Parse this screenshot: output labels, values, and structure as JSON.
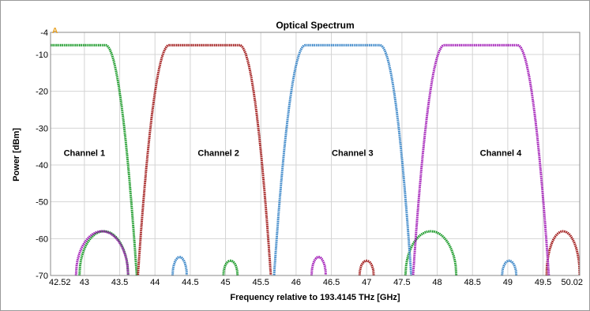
{
  "chart_data": {
    "type": "line",
    "title": "Optical Spectrum",
    "xlabel": "Frequency relative to 193.4145 THz [GHz]",
    "ylabel": "Power [dBm]",
    "xlim": [
      42.52,
      50.02
    ],
    "ylim": [
      -70,
      -4
    ],
    "x_ticks": [
      42.52,
      43,
      43.5,
      44,
      44.5,
      45,
      45.5,
      46,
      46.5,
      47,
      47.5,
      48,
      48.5,
      49,
      49.5,
      50.02
    ],
    "x_tick_labels": [
      "42.52",
      "43",
      "43.5",
      "44",
      "44.5",
      "45",
      "45.5",
      "46",
      "46.5",
      "47",
      "47.5",
      "48",
      "48.5",
      "49",
      "49.5",
      "50.02"
    ],
    "y_ticks": [
      -70,
      -60,
      -50,
      -40,
      -30,
      -20,
      -10,
      -4
    ],
    "y_tick_labels": [
      "-70",
      "-60",
      "-50",
      "-40",
      "-30",
      "-20",
      "-10",
      "-4"
    ],
    "grid": true,
    "marker_label": "A",
    "annotations": [
      {
        "text": "Channel 1",
        "x": 43.0,
        "y": -37.5
      },
      {
        "text": "Channel 2",
        "x": 44.9,
        "y": -37.5
      },
      {
        "text": "Channel 3",
        "x": 46.8,
        "y": -37.5
      },
      {
        "text": "Channel 4",
        "x": 48.9,
        "y": -37.5
      }
    ],
    "series": [
      {
        "color": "#1a9a28",
        "main": {
          "center": 42.55,
          "flat_half_width": 0.75,
          "peak": -7.5,
          "edge_width": 0.25
        },
        "side_lobes": [
          {
            "from": 42.93,
            "to": 43.62,
            "peak": -58
          },
          {
            "from": 44.97,
            "to": 45.17,
            "peak": -66
          },
          {
            "from": 47.55,
            "to": 48.27,
            "peak": -58
          }
        ]
      },
      {
        "color": "#a11a1a",
        "main": {
          "center": 44.7,
          "flat_half_width": 0.5,
          "peak": -7.5,
          "edge_width": 0.25
        },
        "side_lobes": [
          {
            "from": 46.9,
            "to": 47.1,
            "peak": -66
          },
          {
            "from": 49.55,
            "to": 50.02,
            "peak": -58
          }
        ]
      },
      {
        "color": "#3a86c8",
        "main": {
          "center": 46.66,
          "flat_half_width": 0.53,
          "peak": -7.5,
          "edge_width": 0.25
        },
        "side_lobes": [
          {
            "from": 44.25,
            "to": 44.45,
            "peak": -65
          },
          {
            "from": 48.92,
            "to": 49.12,
            "peak": -66
          }
        ]
      },
      {
        "color": "#a31fb8",
        "main": {
          "center": 48.62,
          "flat_half_width": 0.52,
          "peak": -7.5,
          "edge_width": 0.25
        },
        "side_lobes": [
          {
            "from": 42.88,
            "to": 43.62,
            "peak": -58
          },
          {
            "from": 46.22,
            "to": 46.42,
            "peak": -65
          }
        ]
      }
    ]
  }
}
